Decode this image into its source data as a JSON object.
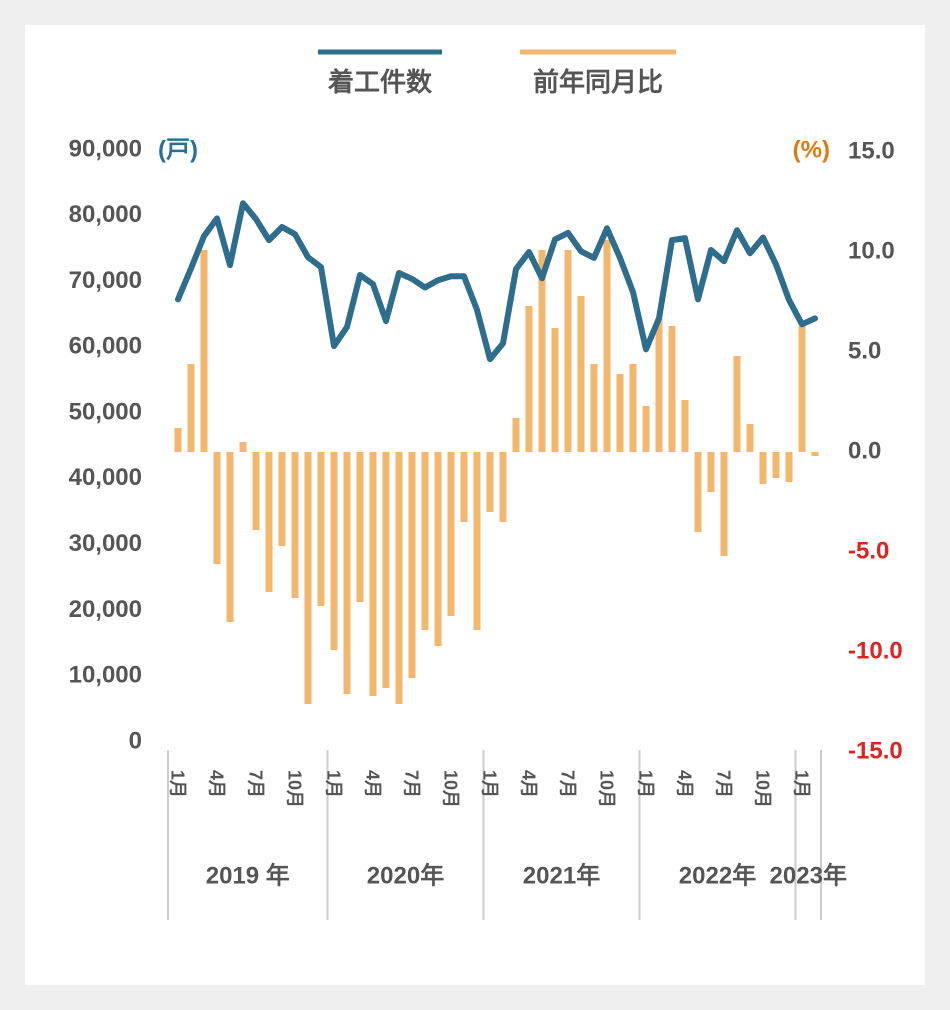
{
  "chart_data": {
    "type": "combo",
    "series": [
      {
        "name": "着工件数",
        "type": "line",
        "axis": "y",
        "color": "#2e6d8c",
        "values": [
          67300,
          72000,
          76900,
          79600,
          72500,
          81900,
          79500,
          76300,
          78300,
          77200,
          73700,
          72200,
          60200,
          63100,
          71000,
          69600,
          64000,
          71300,
          70400,
          69100,
          70200,
          70800,
          70800,
          65700,
          58200,
          60600,
          71900,
          74500,
          70500,
          76400,
          77400,
          74600,
          73600,
          78100,
          73600,
          68400,
          59700,
          64400,
          76300,
          76600,
          67300,
          74800,
          73100,
          77800,
          74300,
          76700,
          72600,
          67200,
          63500,
          64400
        ]
      },
      {
        "name": "前年同月比",
        "type": "bar",
        "axis": "y2",
        "color": "#f2b66d",
        "values": [
          1.2,
          4.4,
          10.1,
          -5.6,
          -8.5,
          0.5,
          -3.9,
          -7.0,
          -4.7,
          -7.3,
          -12.6,
          -7.7,
          -9.9,
          -12.1,
          -7.5,
          -12.2,
          -11.8,
          -12.6,
          -11.3,
          -8.9,
          -9.7,
          -8.2,
          -3.5,
          -8.9,
          -3.0,
          -3.5,
          1.7,
          7.3,
          10.1,
          6.2,
          10.1,
          7.8,
          4.4,
          10.6,
          3.9,
          4.4,
          2.3,
          6.7,
          6.3,
          2.6,
          -4.0,
          -2.0,
          -5.2,
          4.8,
          1.4,
          -1.6,
          -1.3,
          -1.5,
          6.3,
          -0.2
        ]
      }
    ],
    "categories": [
      "1月",
      null,
      null,
      "4月",
      null,
      null,
      "7月",
      null,
      null,
      "10月",
      null,
      null,
      "1月",
      null,
      null,
      "4月",
      null,
      null,
      "7月",
      null,
      null,
      "10月",
      null,
      null,
      "1月",
      null,
      null,
      "4月",
      null,
      null,
      "7月",
      null,
      null,
      "10月",
      null,
      null,
      "1月",
      null,
      null,
      "4月",
      null,
      null,
      "7月",
      null,
      null,
      "10月",
      null,
      null,
      "1月",
      null
    ],
    "years": [
      "2019 年",
      null,
      null,
      null,
      null,
      null,
      null,
      null,
      null,
      null,
      null,
      null,
      "2020年",
      null,
      null,
      null,
      null,
      null,
      null,
      null,
      null,
      null,
      null,
      null,
      "2021年",
      null,
      null,
      null,
      null,
      null,
      null,
      null,
      null,
      null,
      null,
      null,
      "2022年",
      null,
      null,
      null,
      null,
      null,
      null,
      null,
      null,
      null,
      null,
      null,
      "2023年",
      null
    ],
    "y_label": "(戸)",
    "y_label_color": "#2a6f98",
    "y2_label": "(%)",
    "y2_label_color": "#e07a10",
    "ylim": [
      0,
      90000
    ],
    "yticks": [
      0,
      {
        "value": 10000,
        "label": "10,000"
      },
      {
        "value": 20000,
        "label": "20,000"
      },
      {
        "value": 30000,
        "label": "30,000"
      },
      {
        "value": 40000,
        "label": "40,000"
      },
      {
        "value": 50000,
        "label": "50,000"
      },
      {
        "value": 60000,
        "label": "60,000"
      },
      {
        "value": 70000,
        "label": "70,000"
      },
      {
        "value": 80000,
        "label": "80,000"
      },
      {
        "value": 90000,
        "label": "90,000"
      }
    ],
    "y2lim": [
      -15,
      15
    ],
    "y2ticks": [
      {
        "value": -15,
        "label": "-15.0"
      },
      {
        "value": -10,
        "label": "-10.0"
      },
      {
        "value": -5,
        "label": "-5.0"
      },
      {
        "value": 0,
        "label": "0.0"
      },
      {
        "value": 5,
        "label": "5.0"
      },
      {
        "value": 10,
        "label": "10.0"
      },
      {
        "value": 15,
        "label": "15.0"
      }
    ],
    "negative_tick_color": "#e02222",
    "legend": "top",
    "grid": false
  }
}
